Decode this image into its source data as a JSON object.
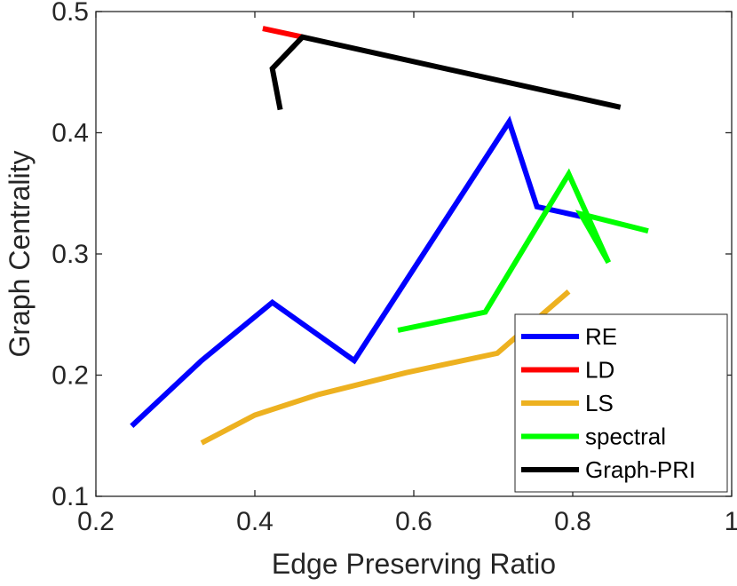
{
  "chart_data": {
    "type": "line",
    "title": "",
    "xlabel": "Edge Preserving Ratio",
    "ylabel": "Graph Centrality",
    "xlim": [
      0.2,
      1
    ],
    "ylim": [
      0.1,
      0.5
    ],
    "xticks": [
      0.2,
      0.4,
      0.6,
      0.8,
      1
    ],
    "xtick_labels": [
      "0.2",
      "0.4",
      "0.6",
      "0.8",
      "1"
    ],
    "yticks": [
      0.1,
      0.2,
      0.3,
      0.4,
      0.5
    ],
    "ytick_labels": [
      "0.1",
      "0.2",
      "0.3",
      "0.4",
      "0.5"
    ],
    "grid": false,
    "legend_position": "bottom-right",
    "series": [
      {
        "name": "RE",
        "color": "#0000FF",
        "x": [
          0.245,
          0.333,
          0.422,
          0.525,
          0.72,
          0.755,
          0.81
        ],
        "y": [
          0.158,
          0.212,
          0.26,
          0.212,
          0.409,
          0.339,
          0.331
        ]
      },
      {
        "name": "LD",
        "color": "#FF0000",
        "x": [
          0.41,
          0.46
        ],
        "y": [
          0.486,
          0.479
        ]
      },
      {
        "name": "LS",
        "color": "#EDB120",
        "x": [
          0.333,
          0.4,
          0.48,
          0.59,
          0.705,
          0.795
        ],
        "y": [
          0.144,
          0.167,
          0.184,
          0.202,
          0.218,
          0.269
        ]
      },
      {
        "name": "spectral",
        "color": "#00FF00",
        "x": [
          0.58,
          0.69,
          0.795,
          0.845,
          0.81,
          0.895
        ],
        "y": [
          0.237,
          0.252,
          0.366,
          0.293,
          0.333,
          0.319
        ]
      },
      {
        "name": "Graph-PRI",
        "color": "#000000",
        "x": [
          0.432,
          0.422,
          0.46,
          0.86
        ],
        "y": [
          0.419,
          0.453,
          0.479,
          0.421
        ]
      }
    ]
  }
}
